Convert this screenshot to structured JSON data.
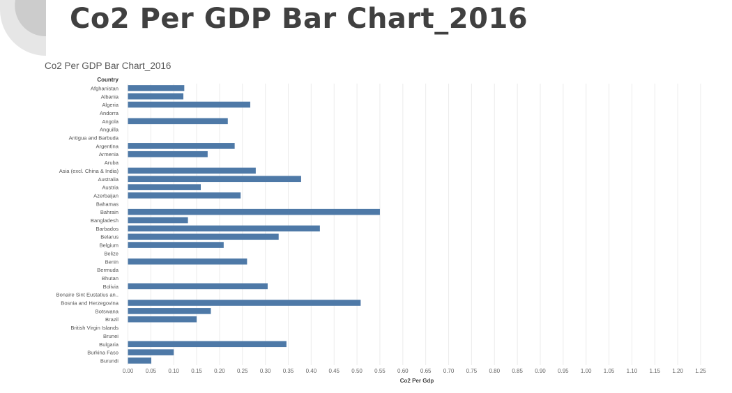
{
  "page": {
    "title": "Co2 Per GDP Bar Chart_2016",
    "colors": {
      "bar": "#4e79a7",
      "title": "#404040",
      "grid": "#ebebeb",
      "deco_light": "#e6e6e6",
      "deco_dark": "#c8c8c8"
    }
  },
  "chart_data": {
    "type": "bar",
    "orientation": "horizontal",
    "title": "Co2 Per GDP Bar Chart_2016",
    "category_header": "Country",
    "xlabel": "Co2 Per Gdp",
    "xlim": [
      0,
      1.25
    ],
    "xticks": [
      0.0,
      0.05,
      0.1,
      0.15,
      0.2,
      0.25,
      0.3,
      0.35,
      0.4,
      0.45,
      0.5,
      0.55,
      0.6,
      0.65,
      0.7,
      0.75,
      0.8,
      0.85,
      0.9,
      0.95,
      1.0,
      1.05,
      1.1,
      1.15,
      1.2,
      1.25
    ],
    "xtick_labels": [
      "0.00",
      "0.05",
      "0.10",
      "0.15",
      "0.20",
      "0.25",
      "0.30",
      "0.35",
      "0.40",
      "0.45",
      "0.50",
      "0.55",
      "0.60",
      "0.65",
      "0.70",
      "0.75",
      "0.80",
      "0.85",
      "0.90",
      "0.95",
      "1.00",
      "1.05",
      "1.10",
      "1.15",
      "1.20",
      "1.25"
    ],
    "grid": true,
    "categories": [
      "Afghanistan",
      "Albania",
      "Algeria",
      "Andorra",
      "Angola",
      "Anguilla",
      "Antigua and Barbuda",
      "Argentina",
      "Armenia",
      "Aruba",
      "Asia (excl. China & India)",
      "Australia",
      "Austria",
      "Azerbaijan",
      "Bahamas",
      "Bahrain",
      "Bangladesh",
      "Barbados",
      "Belarus",
      "Belgium",
      "Belize",
      "Benin",
      "Bermuda",
      "Bhutan",
      "Bolivia",
      "Bonaire Sint Eustatius an..",
      "Bosnia and Herzegovina",
      "Botswana",
      "Brazil",
      "British Virgin Islands",
      "Brunei",
      "Bulgaria",
      "Burkina Faso",
      "Burundi"
    ],
    "values": [
      0.123,
      0.121,
      0.267,
      null,
      0.218,
      null,
      null,
      0.233,
      0.174,
      null,
      0.279,
      0.378,
      0.159,
      0.246,
      null,
      0.55,
      0.131,
      0.419,
      0.329,
      0.209,
      null,
      0.26,
      null,
      null,
      0.305,
      null,
      0.508,
      0.181,
      0.15,
      null,
      null,
      0.346,
      0.1,
      0.051
    ]
  }
}
